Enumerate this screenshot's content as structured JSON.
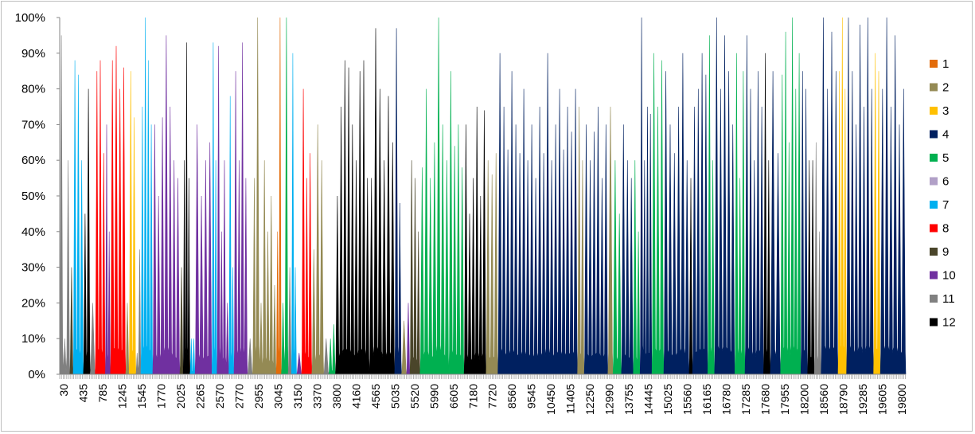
{
  "chart_data": {
    "type": "area",
    "title": "",
    "xlabel": "",
    "ylabel": "",
    "ylim": [
      0,
      1
    ],
    "y_ticks": [
      "0%",
      "10%",
      "20%",
      "30%",
      "40%",
      "50%",
      "60%",
      "70%",
      "80%",
      "90%",
      "100%"
    ],
    "x_tick_labels": [
      "30",
      "435",
      "785",
      "1245",
      "1545",
      "1770",
      "2025",
      "2265",
      "2570",
      "2770",
      "2955",
      "3045",
      "3150",
      "3370",
      "3800",
      "4160",
      "4565",
      "5035",
      "5520",
      "5990",
      "6605",
      "7180",
      "7720",
      "8560",
      "9545",
      "10450",
      "11405",
      "12250",
      "12990",
      "13755",
      "14445",
      "15025",
      "15560",
      "16165",
      "16780",
      "17285",
      "17680",
      "17955",
      "18200",
      "18560",
      "18790",
      "19285",
      "19605",
      "19800"
    ],
    "legend_position": "right",
    "legend": [
      "1",
      "2",
      "3",
      "4",
      "5",
      "6",
      "7",
      "8",
      "9",
      "10",
      "11",
      "12"
    ],
    "colors": {
      "1": "#e36c0a",
      "2": "#948a54",
      "3": "#ffc000",
      "4": "#002060",
      "5": "#00b050",
      "6": "#b1a0c7",
      "7": "#00b0f0",
      "8": "#ff0000",
      "9": "#4a452a",
      "10": "#7030a0",
      "11": "#808080",
      "12": "#000000"
    },
    "segments": [
      {
        "cluster": "11",
        "start": 0.0,
        "end": 0.012,
        "peaks": [
          0.95,
          0.1,
          0.6
        ]
      },
      {
        "cluster": "9",
        "start": 0.012,
        "end": 0.016,
        "peaks": [
          0.3
        ]
      },
      {
        "cluster": "7",
        "start": 0.016,
        "end": 0.028,
        "peaks": [
          0.88,
          0.84,
          0.6
        ]
      },
      {
        "cluster": "12",
        "start": 0.028,
        "end": 0.036,
        "peaks": [
          0.45,
          0.8
        ]
      },
      {
        "cluster": "11",
        "start": 0.036,
        "end": 0.042,
        "peaks": [
          0.2
        ]
      },
      {
        "cluster": "8",
        "start": 0.042,
        "end": 0.054,
        "peaks": [
          0.85,
          0.88,
          0.62
        ]
      },
      {
        "cluster": "10",
        "start": 0.054,
        "end": 0.06,
        "peaks": [
          0.7,
          0.4
        ]
      },
      {
        "cluster": "8",
        "start": 0.06,
        "end": 0.078,
        "peaks": [
          0.88,
          0.92,
          0.8,
          0.86
        ]
      },
      {
        "cluster": "2",
        "start": 0.078,
        "end": 0.082,
        "peaks": [
          0.2
        ]
      },
      {
        "cluster": "3",
        "start": 0.082,
        "end": 0.09,
        "peaks": [
          0.85,
          0.72
        ]
      },
      {
        "cluster": "11",
        "start": 0.09,
        "end": 0.096,
        "peaks": [
          0.06,
          0.35
        ]
      },
      {
        "cluster": "7",
        "start": 0.096,
        "end": 0.11,
        "peaks": [
          0.75,
          1.0,
          0.88,
          0.7
        ]
      },
      {
        "cluster": "10",
        "start": 0.11,
        "end": 0.142,
        "peaks": [
          0.7,
          0.5,
          0.72,
          0.95,
          0.75,
          0.6,
          0.55
        ]
      },
      {
        "cluster": "9",
        "start": 0.142,
        "end": 0.146,
        "peaks": [
          0.3
        ]
      },
      {
        "cluster": "12",
        "start": 0.146,
        "end": 0.154,
        "peaks": [
          0.6,
          0.93,
          0.55
        ]
      },
      {
        "cluster": "7",
        "start": 0.154,
        "end": 0.16,
        "peaks": [
          0.1,
          0.1
        ]
      },
      {
        "cluster": "10",
        "start": 0.16,
        "end": 0.18,
        "peaks": [
          0.7,
          0.5,
          0.6,
          0.65
        ]
      },
      {
        "cluster": "7",
        "start": 0.18,
        "end": 0.186,
        "peaks": [
          0.93,
          0.6
        ]
      },
      {
        "cluster": "10",
        "start": 0.186,
        "end": 0.2,
        "peaks": [
          0.92,
          0.4,
          0.6,
          0.2
        ]
      },
      {
        "cluster": "7",
        "start": 0.2,
        "end": 0.206,
        "peaks": [
          0.78,
          0.3
        ]
      },
      {
        "cluster": "10",
        "start": 0.206,
        "end": 0.222,
        "peaks": [
          0.85,
          0.6,
          0.93,
          0.55
        ]
      },
      {
        "cluster": "11",
        "start": 0.222,
        "end": 0.228,
        "peaks": [
          0.1
        ]
      },
      {
        "cluster": "2",
        "start": 0.228,
        "end": 0.256,
        "peaks": [
          0.55,
          1.0,
          0.2,
          0.6,
          0.4,
          0.5,
          0.25
        ]
      },
      {
        "cluster": "1",
        "start": 0.256,
        "end": 0.262,
        "peaks": [
          0.4,
          1.0
        ]
      },
      {
        "cluster": "5",
        "start": 0.262,
        "end": 0.27,
        "peaks": [
          0.2,
          1.0
        ]
      },
      {
        "cluster": "11",
        "start": 0.27,
        "end": 0.274,
        "peaks": [
          0.3
        ]
      },
      {
        "cluster": "7",
        "start": 0.274,
        "end": 0.28,
        "peaks": [
          0.9,
          0.3
        ]
      },
      {
        "cluster": "10",
        "start": 0.28,
        "end": 0.286,
        "peaks": [
          0.06
        ]
      },
      {
        "cluster": "8",
        "start": 0.286,
        "end": 0.298,
        "peaks": [
          0.8,
          0.55,
          0.62
        ]
      },
      {
        "cluster": "2",
        "start": 0.298,
        "end": 0.312,
        "peaks": [
          0.35,
          0.7,
          0.6
        ]
      },
      {
        "cluster": "11",
        "start": 0.312,
        "end": 0.318,
        "peaks": [
          0.1
        ]
      },
      {
        "cluster": "5",
        "start": 0.318,
        "end": 0.326,
        "peaks": [
          0.1,
          0.14
        ]
      },
      {
        "cluster": "12",
        "start": 0.326,
        "end": 0.366,
        "peaks": [
          0.5,
          0.75,
          0.88,
          0.86,
          0.7,
          0.6,
          0.85,
          0.88,
          0.55
        ]
      },
      {
        "cluster": "12",
        "start": 0.366,
        "end": 0.396,
        "peaks": [
          0.55,
          0.97,
          0.8,
          0.6,
          0.78,
          0.65
        ]
      },
      {
        "cluster": "4",
        "start": 0.396,
        "end": 0.404,
        "peaks": [
          0.97,
          0.48
        ]
      },
      {
        "cluster": "2",
        "start": 0.404,
        "end": 0.41,
        "peaks": [
          0.15
        ]
      },
      {
        "cluster": "10",
        "start": 0.41,
        "end": 0.414,
        "peaks": [
          0.2
        ]
      },
      {
        "cluster": "9",
        "start": 0.414,
        "end": 0.426,
        "peaks": [
          0.6,
          0.55,
          0.4
        ]
      },
      {
        "cluster": "5",
        "start": 0.426,
        "end": 0.46,
        "peaks": [
          0.58,
          0.8,
          0.55,
          0.65,
          1.0,
          0.7,
          0.6
        ]
      },
      {
        "cluster": "5",
        "start": 0.46,
        "end": 0.478,
        "peaks": [
          0.85,
          0.64,
          0.7,
          0.58
        ]
      },
      {
        "cluster": "12",
        "start": 0.478,
        "end": 0.504,
        "peaks": [
          0.7,
          0.45,
          0.55,
          0.75,
          0.5,
          0.74
        ]
      },
      {
        "cluster": "2",
        "start": 0.504,
        "end": 0.518,
        "peaks": [
          0.6,
          0.56,
          0.62
        ]
      },
      {
        "cluster": "4",
        "start": 0.518,
        "end": 0.612,
        "peaks": [
          0.9,
          0.75,
          0.63,
          0.85,
          0.7,
          0.62,
          0.8,
          0.6,
          0.7,
          0.55,
          0.75,
          0.62,
          0.9,
          0.6,
          0.7,
          0.8,
          0.63,
          0.75,
          0.68,
          0.8
        ]
      },
      {
        "cluster": "2",
        "start": 0.612,
        "end": 0.62,
        "peaks": [
          0.75,
          0.6
        ]
      },
      {
        "cluster": "4",
        "start": 0.62,
        "end": 0.648,
        "peaks": [
          0.7,
          0.6,
          0.68,
          0.75,
          0.55,
          0.7
        ]
      },
      {
        "cluster": "2",
        "start": 0.648,
        "end": 0.654,
        "peaks": [
          0.75
        ]
      },
      {
        "cluster": "5",
        "start": 0.654,
        "end": 0.664,
        "peaks": [
          0.6,
          0.45
        ]
      },
      {
        "cluster": "4",
        "start": 0.664,
        "end": 0.678,
        "peaks": [
          0.7,
          0.6,
          0.55
        ]
      },
      {
        "cluster": "5",
        "start": 0.678,
        "end": 0.686,
        "peaks": [
          0.6,
          0.4
        ]
      },
      {
        "cluster": "4",
        "start": 0.686,
        "end": 0.7,
        "peaks": [
          1.0,
          0.6,
          0.75,
          0.73
        ]
      },
      {
        "cluster": "5",
        "start": 0.7,
        "end": 0.714,
        "peaks": [
          0.9,
          0.75,
          0.88
        ]
      },
      {
        "cluster": "4",
        "start": 0.714,
        "end": 0.744,
        "peaks": [
          0.85,
          0.7,
          0.62,
          0.75,
          0.9,
          0.6
        ]
      },
      {
        "cluster": "12",
        "start": 0.744,
        "end": 0.748,
        "peaks": [
          0.55
        ]
      },
      {
        "cluster": "4",
        "start": 0.748,
        "end": 0.766,
        "peaks": [
          0.75,
          0.8,
          0.9,
          0.84
        ]
      },
      {
        "cluster": "5",
        "start": 0.766,
        "end": 0.774,
        "peaks": [
          0.95,
          0.6
        ]
      },
      {
        "cluster": "4",
        "start": 0.774,
        "end": 0.798,
        "peaks": [
          1.0,
          0.8,
          0.95,
          0.85,
          0.7
        ]
      },
      {
        "cluster": "5",
        "start": 0.798,
        "end": 0.81,
        "peaks": [
          0.9,
          0.55,
          0.85
        ]
      },
      {
        "cluster": "4",
        "start": 0.81,
        "end": 0.832,
        "peaks": [
          0.95,
          0.8,
          0.6,
          0.85,
          0.75
        ]
      },
      {
        "cluster": "12",
        "start": 0.832,
        "end": 0.84,
        "peaks": [
          0.9,
          0.6
        ]
      },
      {
        "cluster": "4",
        "start": 0.84,
        "end": 0.852,
        "peaks": [
          0.85,
          0.62
        ]
      },
      {
        "cluster": "5",
        "start": 0.852,
        "end": 0.876,
        "peaks": [
          0.84,
          0.96,
          0.65,
          1.0,
          0.8,
          0.9
        ]
      },
      {
        "cluster": "4",
        "start": 0.876,
        "end": 0.884,
        "peaks": [
          0.85,
          0.8
        ]
      },
      {
        "cluster": "12",
        "start": 0.884,
        "end": 0.892,
        "peaks": [
          0.6,
          0.6
        ]
      },
      {
        "cluster": "11",
        "start": 0.892,
        "end": 0.9,
        "peaks": [
          0.65,
          0.4
        ]
      },
      {
        "cluster": "4",
        "start": 0.9,
        "end": 0.92,
        "peaks": [
          1.0,
          0.8,
          0.96,
          0.85
        ]
      },
      {
        "cluster": "3",
        "start": 0.92,
        "end": 0.93,
        "peaks": [
          0.85,
          1.0,
          0.8
        ]
      },
      {
        "cluster": "4",
        "start": 0.93,
        "end": 0.962,
        "peaks": [
          1.0,
          0.85,
          0.7,
          0.98,
          0.75,
          1.0,
          0.8
        ]
      },
      {
        "cluster": "3",
        "start": 0.962,
        "end": 0.97,
        "peaks": [
          0.9,
          0.85
        ]
      },
      {
        "cluster": "4",
        "start": 0.97,
        "end": 1.0,
        "peaks": [
          0.8,
          1.0,
          0.75,
          0.95,
          0.7,
          0.8
        ]
      }
    ]
  }
}
